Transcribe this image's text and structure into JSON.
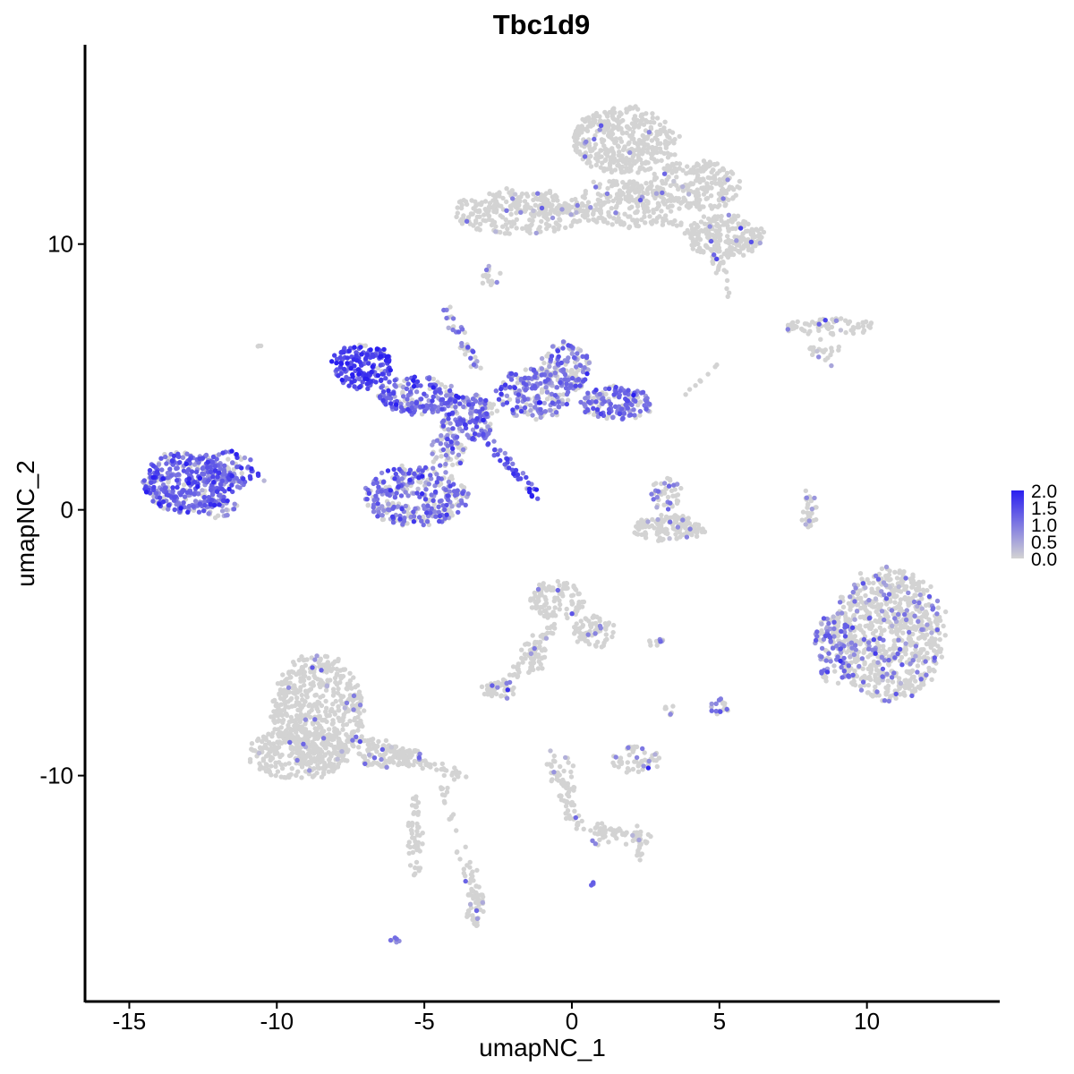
{
  "chart_data": {
    "type": "scatter",
    "title": "Tbc1d9",
    "xlabel": "umapNC_1",
    "ylabel": "umapNC_2",
    "xlim": [
      -16.5,
      14.5
    ],
    "ylim": [
      -18.5,
      17.5
    ],
    "x_ticks": [
      {
        "value": -15,
        "label": "-15"
      },
      {
        "value": -10,
        "label": "-10"
      },
      {
        "value": -5,
        "label": "-5"
      },
      {
        "value": 0,
        "label": "0"
      },
      {
        "value": 5,
        "label": "5"
      },
      {
        "value": 10,
        "label": "10"
      }
    ],
    "y_ticks": [
      {
        "value": 10,
        "label": "10"
      },
      {
        "value": 0,
        "label": "0"
      },
      {
        "value": -10,
        "label": "-10"
      }
    ],
    "grid": false,
    "legend": {
      "position": "right",
      "type": "colorbar",
      "low_color": "#d3d3d3",
      "high_color": "#2a1ff0",
      "range": [
        0,
        2.0
      ],
      "labels": [
        {
          "value": 2.0,
          "label": "2.0"
        },
        {
          "value": 1.5,
          "label": "1.5"
        },
        {
          "value": 1.0,
          "label": "1.0"
        },
        {
          "value": 0.5,
          "label": "0.5"
        },
        {
          "value": 0.0,
          "label": "0.0"
        }
      ]
    },
    "point_color_zero": "#d3d3d3",
    "clusters": [
      {
        "cx": 1.8,
        "cy": 13.9,
        "rx": 1.7,
        "ry": 1.2,
        "n": 380,
        "expr_frac": 0.02,
        "expr_level": 0.8
      },
      {
        "cx": 4.2,
        "cy": 12.2,
        "rx": 1.5,
        "ry": 0.9,
        "n": 220,
        "expr_frac": 0.02,
        "expr_level": 0.8
      },
      {
        "cx": 5.2,
        "cy": 10.3,
        "rx": 1.3,
        "ry": 0.8,
        "n": 220,
        "expr_frac": 0.03,
        "expr_level": 0.8
      },
      {
        "cx": -1.8,
        "cy": 11.2,
        "rx": 2.2,
        "ry": 0.8,
        "n": 240,
        "expr_frac": 0.03,
        "expr_level": 0.8
      },
      {
        "cx": 1.8,
        "cy": 11.5,
        "rx": 1.6,
        "ry": 0.9,
        "n": 200,
        "expr_frac": 0.02,
        "expr_level": 0.8
      },
      {
        "cx": -2.7,
        "cy": 8.8,
        "rx": 0.3,
        "ry": 0.4,
        "n": 12,
        "expr_frac": 0.2,
        "expr_level": 0.8
      },
      {
        "cx": 8.8,
        "cy": 6.9,
        "rx": 1.6,
        "ry": 0.3,
        "n": 70,
        "expr_frac": 0.05,
        "expr_level": 1.0
      },
      {
        "cx": 8.6,
        "cy": 6.1,
        "rx": 0.5,
        "ry": 0.4,
        "n": 12,
        "expr_frac": 0.1,
        "expr_level": 0.6
      },
      {
        "cx": -13.0,
        "cy": 1.0,
        "rx": 1.5,
        "ry": 1.1,
        "n": 360,
        "expr_frac": 0.85,
        "expr_level": 1.2
      },
      {
        "cx": -11.6,
        "cy": 1.5,
        "rx": 0.8,
        "ry": 0.7,
        "n": 70,
        "expr_frac": 0.8,
        "expr_level": 1.0
      },
      {
        "cx": -12.0,
        "cy": 0.1,
        "rx": 0.6,
        "ry": 0.4,
        "n": 30,
        "expr_frac": 0.6,
        "expr_level": 0.7
      },
      {
        "cx": -7.1,
        "cy": 5.4,
        "rx": 1.0,
        "ry": 0.8,
        "n": 170,
        "expr_frac": 0.9,
        "expr_level": 1.5
      },
      {
        "cx": -5.3,
        "cy": 4.3,
        "rx": 1.4,
        "ry": 0.7,
        "n": 160,
        "expr_frac": 0.8,
        "expr_level": 1.2
      },
      {
        "cx": -3.5,
        "cy": 3.5,
        "rx": 1.0,
        "ry": 0.8,
        "n": 150,
        "expr_frac": 0.7,
        "expr_level": 1.1
      },
      {
        "cx": -1.3,
        "cy": 4.4,
        "rx": 1.2,
        "ry": 1.0,
        "n": 200,
        "expr_frac": 0.65,
        "expr_level": 1.0
      },
      {
        "cx": -0.2,
        "cy": 5.4,
        "rx": 0.8,
        "ry": 0.9,
        "n": 130,
        "expr_frac": 0.7,
        "expr_level": 1.0
      },
      {
        "cx": 1.5,
        "cy": 4.0,
        "rx": 1.2,
        "ry": 0.6,
        "n": 160,
        "expr_frac": 0.65,
        "expr_level": 1.0
      },
      {
        "cx": -5.3,
        "cy": 0.5,
        "rx": 1.7,
        "ry": 1.1,
        "n": 320,
        "expr_frac": 0.6,
        "expr_level": 1.0
      },
      {
        "cx": -4.2,
        "cy": 2.2,
        "rx": 0.6,
        "ry": 0.6,
        "n": 60,
        "expr_frac": 0.5,
        "expr_level": 0.9
      },
      {
        "cx": 3.3,
        "cy": -0.7,
        "rx": 1.2,
        "ry": 0.5,
        "n": 140,
        "expr_frac": 0.05,
        "expr_level": 0.7
      },
      {
        "cx": 3.2,
        "cy": 0.6,
        "rx": 0.5,
        "ry": 0.6,
        "n": 45,
        "expr_frac": 0.35,
        "expr_level": 0.8
      },
      {
        "cx": 8.1,
        "cy": 0.0,
        "rx": 0.2,
        "ry": 0.7,
        "n": 20,
        "expr_frac": 0.15,
        "expr_level": 0.8
      },
      {
        "cx": 10.7,
        "cy": -4.7,
        "rx": 1.8,
        "ry": 2.4,
        "n": 800,
        "expr_frac": 0.15,
        "expr_level": 0.9
      },
      {
        "cx": 8.9,
        "cy": -5.2,
        "rx": 0.7,
        "ry": 1.3,
        "n": 120,
        "expr_frac": 0.4,
        "expr_level": 1.0
      },
      {
        "cx": -0.5,
        "cy": -3.4,
        "rx": 0.9,
        "ry": 0.7,
        "n": 110,
        "expr_frac": 0.05,
        "expr_level": 0.8
      },
      {
        "cx": 0.8,
        "cy": -4.6,
        "rx": 0.7,
        "ry": 0.6,
        "n": 70,
        "expr_frac": 0.05,
        "expr_level": 0.8
      },
      {
        "cx": -1.3,
        "cy": -5.5,
        "rx": 0.4,
        "ry": 0.7,
        "n": 40,
        "expr_frac": 0.03,
        "expr_level": 0.7
      },
      {
        "cx": -2.5,
        "cy": -6.8,
        "rx": 0.6,
        "ry": 0.3,
        "n": 40,
        "expr_frac": 0.15,
        "expr_level": 0.8
      },
      {
        "cx": 2.9,
        "cy": -5.0,
        "rx": 0.4,
        "ry": 0.15,
        "n": 10,
        "expr_frac": 0.4,
        "expr_level": 0.8
      },
      {
        "cx": 5.0,
        "cy": -7.4,
        "rx": 0.3,
        "ry": 0.3,
        "n": 18,
        "expr_frac": 0.7,
        "expr_level": 0.9
      },
      {
        "cx": 3.3,
        "cy": -7.5,
        "rx": 0.2,
        "ry": 0.3,
        "n": 8,
        "expr_frac": 0.05,
        "expr_level": 0.7
      },
      {
        "cx": 2.2,
        "cy": -9.4,
        "rx": 0.8,
        "ry": 0.5,
        "n": 55,
        "expr_frac": 0.15,
        "expr_level": 0.8
      },
      {
        "cx": -8.6,
        "cy": -7.6,
        "rx": 1.5,
        "ry": 2.1,
        "n": 560,
        "expr_frac": 0.03,
        "expr_level": 0.8
      },
      {
        "cx": -9.3,
        "cy": -9.2,
        "rx": 1.6,
        "ry": 0.9,
        "n": 220,
        "expr_frac": 0.03,
        "expr_level": 0.8
      },
      {
        "cx": -6.2,
        "cy": -9.3,
        "rx": 1.1,
        "ry": 0.4,
        "n": 90,
        "expr_frac": 0.04,
        "expr_level": 0.8
      },
      {
        "cx": -5.3,
        "cy": -12.3,
        "rx": 0.25,
        "ry": 1.5,
        "n": 50,
        "expr_frac": 0.02,
        "expr_level": 0.7
      },
      {
        "cx": -3.3,
        "cy": -14.9,
        "rx": 0.3,
        "ry": 0.8,
        "n": 50,
        "expr_frac": 0.05,
        "expr_level": 0.7
      },
      {
        "cx": -0.2,
        "cy": -10.3,
        "rx": 0.3,
        "ry": 1.2,
        "n": 30,
        "expr_frac": 0.05,
        "expr_level": 0.7
      },
      {
        "cx": 1.6,
        "cy": -12.3,
        "rx": 1.1,
        "ry": 0.4,
        "n": 30,
        "expr_frac": 0.1,
        "expr_level": 0.7
      },
      {
        "cx": -6.0,
        "cy": -16.2,
        "rx": 0.2,
        "ry": 0.1,
        "n": 6,
        "expr_frac": 0.9,
        "expr_level": 0.8
      },
      {
        "cx": 0.7,
        "cy": -14.1,
        "rx": 0.1,
        "ry": 0.1,
        "n": 4,
        "expr_frac": 0.9,
        "expr_level": 0.8
      },
      {
        "cx": -10.6,
        "cy": 6.1,
        "rx": 0.1,
        "ry": 0.1,
        "n": 3,
        "expr_frac": 0.0,
        "expr_level": 0.5
      }
    ],
    "streams": [
      {
        "x1": -3.0,
        "y1": 5.0,
        "x2": -4.3,
        "y2": 7.5,
        "n": 40,
        "expr_frac": 0.5,
        "expr_level": 0.9
      },
      {
        "x1": -3.0,
        "y1": 2.8,
        "x2": -1.3,
        "y2": 0.7,
        "n": 40,
        "expr_frac": 0.9,
        "expr_level": 1.3
      },
      {
        "x1": -1.5,
        "y1": 0.6,
        "x2": -1.2,
        "y2": 0.7,
        "n": 6,
        "expr_frac": 1.0,
        "expr_level": 2.0
      },
      {
        "x1": -13.5,
        "y1": 1.1,
        "x2": -10.5,
        "y2": 1.4,
        "n": 40,
        "expr_frac": 0.8,
        "expr_level": 1.0
      },
      {
        "x1": -0.5,
        "y1": -4.2,
        "x2": -2.4,
        "y2": -6.6,
        "n": 45,
        "expr_frac": 0.03,
        "expr_level": 0.7
      },
      {
        "x1": -7.5,
        "y1": -8.5,
        "x2": -3.7,
        "y2": -10.1,
        "n": 90,
        "expr_frac": 0.03,
        "expr_level": 0.8
      },
      {
        "x1": -4.5,
        "y1": -10.0,
        "x2": -3.3,
        "y2": -14.5,
        "n": 35,
        "expr_frac": 0.03,
        "expr_level": 0.7
      },
      {
        "x1": -0.8,
        "y1": -9.3,
        "x2": 0.1,
        "y2": -11.8,
        "n": 40,
        "expr_frac": 0.05,
        "expr_level": 0.7
      },
      {
        "x1": 0.1,
        "y1": -11.8,
        "x2": 2.4,
        "y2": -12.5,
        "n": 40,
        "expr_frac": 0.08,
        "expr_level": 0.7
      },
      {
        "x1": 2.1,
        "y1": -12.0,
        "x2": 2.4,
        "y2": -13.1,
        "n": 15,
        "expr_frac": 0.15,
        "expr_level": 0.7
      },
      {
        "x1": -3.1,
        "y1": 11.3,
        "x2": 0.5,
        "y2": 11.3,
        "n": 60,
        "expr_frac": 0.03,
        "expr_level": 0.8
      },
      {
        "x1": 1.5,
        "y1": 12.0,
        "x2": 3.8,
        "y2": 10.6,
        "n": 40,
        "expr_frac": 0.02,
        "expr_level": 0.7
      },
      {
        "x1": 4.7,
        "y1": 10.3,
        "x2": 5.3,
        "y2": 8.0,
        "n": 25,
        "expr_frac": 0.02,
        "expr_level": 0.7
      },
      {
        "x1": 8.1,
        "y1": 6.0,
        "x2": 8.9,
        "y2": 5.8,
        "n": 10,
        "expr_frac": 0.02,
        "expr_level": 0.7
      },
      {
        "x1": 8.0,
        "y1": 0.9,
        "x2": 8.0,
        "y2": -0.9,
        "n": 12,
        "expr_frac": 0.2,
        "expr_level": 0.7
      },
      {
        "x1": 5.3,
        "y1": 5.8,
        "x2": 3.8,
        "y2": 4.3,
        "n": 8,
        "expr_frac": 0.0,
        "expr_level": 0.5
      },
      {
        "x1": -2.9,
        "y1": 9.0,
        "x2": -2.9,
        "y2": 8.5,
        "n": 5,
        "expr_frac": 0.0,
        "expr_level": 0.5
      }
    ]
  }
}
